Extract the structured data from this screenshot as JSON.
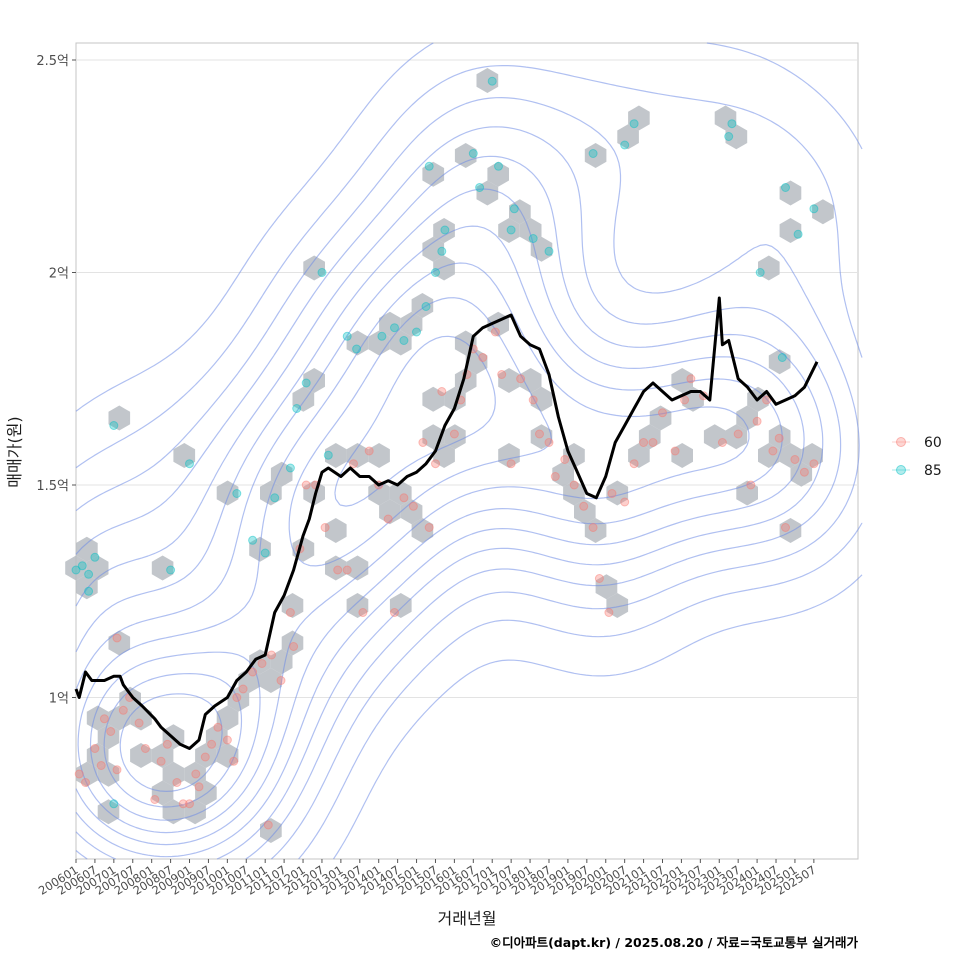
{
  "chart_data": {
    "type": "scatter",
    "xlabel": "거래년월",
    "ylabel": "매매가(원)",
    "caption": "©디아파트(dapt.kr) / 2025.08.20 / 자료=국토교통부 실거래가",
    "x_range": [
      "2006-01",
      "2026-09"
    ],
    "x_ticks": [
      "200601",
      "200607",
      "200701",
      "200707",
      "200801",
      "200807",
      "200901",
      "200907",
      "201001",
      "201007",
      "201101",
      "201107",
      "201201",
      "201207",
      "201301",
      "201307",
      "201401",
      "201407",
      "201501",
      "201507",
      "201601",
      "201607",
      "201701",
      "201707",
      "201801",
      "201807",
      "201901",
      "201907",
      "202001",
      "202007",
      "202101",
      "202107",
      "202201",
      "202207",
      "202301",
      "202307",
      "202401",
      "202407",
      "202501",
      "202507"
    ],
    "y_ticks": [
      {
        "value": 1.0,
        "label": "1억"
      },
      {
        "value": 1.5,
        "label": "1.5억"
      },
      {
        "value": 2.0,
        "label": "2억"
      },
      {
        "value": 2.5,
        "label": "2.5억"
      }
    ],
    "ylim": [
      0.62,
      2.54
    ],
    "grid": true,
    "legend_position": "right",
    "colors": {
      "60": "#f8766d",
      "85": "#00bfc4",
      "trend": "#000000",
      "density": "#6f8ce6",
      "hex": "#b7bcc2"
    },
    "series": [
      {
        "name": "60",
        "values": [
          [
            "2006-02",
            0.82
          ],
          [
            "2006-04",
            0.8
          ],
          [
            "2006-07",
            0.88
          ],
          [
            "2006-09",
            0.84
          ],
          [
            "2006-10",
            0.95
          ],
          [
            "2006-12",
            0.92
          ],
          [
            "2007-02",
            0.83
          ],
          [
            "2007-02",
            1.14
          ],
          [
            "2007-04",
            0.97
          ],
          [
            "2007-06",
            1.0
          ],
          [
            "2007-09",
            0.94
          ],
          [
            "2007-11",
            0.88
          ],
          [
            "2008-02",
            0.76
          ],
          [
            "2008-04",
            0.85
          ],
          [
            "2008-06",
            0.89
          ],
          [
            "2008-09",
            0.8
          ],
          [
            "2008-11",
            0.75
          ],
          [
            "2009-01",
            0.75
          ],
          [
            "2009-03",
            0.82
          ],
          [
            "2009-04",
            0.79
          ],
          [
            "2009-06",
            0.86
          ],
          [
            "2009-08",
            0.89
          ],
          [
            "2009-10",
            0.93
          ],
          [
            "2010-01",
            0.9
          ],
          [
            "2010-03",
            0.85
          ],
          [
            "2010-04",
            1.0
          ],
          [
            "2010-06",
            1.02
          ],
          [
            "2010-09",
            1.06
          ],
          [
            "2010-12",
            1.08
          ],
          [
            "2011-03",
            1.1
          ],
          [
            "2011-06",
            1.04
          ],
          [
            "2011-02",
            0.7
          ],
          [
            "2011-09",
            1.2
          ],
          [
            "2011-10",
            1.12
          ],
          [
            "2011-12",
            1.35
          ],
          [
            "2012-02",
            1.5
          ],
          [
            "2012-05",
            1.5
          ],
          [
            "2012-08",
            1.4
          ],
          [
            "2012-12",
            1.3
          ],
          [
            "2013-03",
            1.3
          ],
          [
            "2013-05",
            1.55
          ],
          [
            "2013-08",
            1.2
          ],
          [
            "2013-10",
            1.58
          ],
          [
            "2014-01",
            1.5
          ],
          [
            "2014-04",
            1.42
          ],
          [
            "2014-06",
            1.2
          ],
          [
            "2014-09",
            1.47
          ],
          [
            "2014-12",
            1.45
          ],
          [
            "2015-03",
            1.6
          ],
          [
            "2015-05",
            1.4
          ],
          [
            "2015-07",
            1.55
          ],
          [
            "2015-09",
            1.72
          ],
          [
            "2016-01",
            1.62
          ],
          [
            "2016-03",
            1.7
          ],
          [
            "2016-05",
            1.76
          ],
          [
            "2016-07",
            1.82
          ],
          [
            "2016-10",
            1.8
          ],
          [
            "2017-02",
            1.86
          ],
          [
            "2017-04",
            1.76
          ],
          [
            "2017-07",
            1.55
          ],
          [
            "2017-10",
            1.75
          ],
          [
            "2018-02",
            1.7
          ],
          [
            "2018-04",
            1.62
          ],
          [
            "2018-07",
            1.6
          ],
          [
            "2018-09",
            1.52
          ],
          [
            "2018-12",
            1.56
          ],
          [
            "2019-03",
            1.5
          ],
          [
            "2019-06",
            1.45
          ],
          [
            "2019-09",
            1.4
          ],
          [
            "2019-11",
            1.28
          ],
          [
            "2020-02",
            1.2
          ],
          [
            "2020-03",
            1.48
          ],
          [
            "2020-07",
            1.46
          ],
          [
            "2020-10",
            1.55
          ],
          [
            "2021-01",
            1.6
          ],
          [
            "2021-04",
            1.6
          ],
          [
            "2021-07",
            1.67
          ],
          [
            "2021-11",
            1.58
          ],
          [
            "2022-02",
            1.7
          ],
          [
            "2022-04",
            1.75
          ],
          [
            "2022-08",
            1.71
          ],
          [
            "2023-02",
            1.6
          ],
          [
            "2023-07",
            1.62
          ],
          [
            "2023-11",
            1.5
          ],
          [
            "2024-01",
            1.65
          ],
          [
            "2024-04",
            1.7
          ],
          [
            "2024-06",
            1.58
          ],
          [
            "2024-08",
            1.61
          ],
          [
            "2024-10",
            1.4
          ],
          [
            "2025-01",
            1.56
          ],
          [
            "2025-04",
            1.53
          ],
          [
            "2025-07",
            1.55
          ]
        ]
      },
      {
        "name": "85",
        "values": [
          [
            "2006-01",
            1.3
          ],
          [
            "2006-03",
            1.31
          ],
          [
            "2006-05",
            1.29
          ],
          [
            "2006-07",
            1.33
          ],
          [
            "2006-05",
            1.25
          ],
          [
            "2007-01",
            1.64
          ],
          [
            "2007-01",
            0.75
          ],
          [
            "2008-07",
            1.3
          ],
          [
            "2009-01",
            1.55
          ],
          [
            "2010-04",
            1.48
          ],
          [
            "2010-09",
            1.37
          ],
          [
            "2011-01",
            1.34
          ],
          [
            "2011-04",
            1.47
          ],
          [
            "2011-09",
            1.54
          ],
          [
            "2011-11",
            1.68
          ],
          [
            "2012-02",
            1.74
          ],
          [
            "2012-07",
            2.0
          ],
          [
            "2012-09",
            1.57
          ],
          [
            "2013-06",
            1.82
          ],
          [
            "2013-03",
            1.85
          ],
          [
            "2014-02",
            1.85
          ],
          [
            "2014-06",
            1.87
          ],
          [
            "2014-09",
            1.84
          ],
          [
            "2015-01",
            1.86
          ],
          [
            "2015-04",
            1.92
          ],
          [
            "2015-07",
            2.0
          ],
          [
            "2015-09",
            2.05
          ],
          [
            "2015-10",
            2.1
          ],
          [
            "2015-05",
            2.25
          ],
          [
            "2016-07",
            2.28
          ],
          [
            "2016-09",
            2.2
          ],
          [
            "2017-01",
            2.45
          ],
          [
            "2017-03",
            2.25
          ],
          [
            "2017-07",
            2.1
          ],
          [
            "2017-08",
            2.15
          ],
          [
            "2018-02",
            2.08
          ],
          [
            "2018-07",
            2.05
          ],
          [
            "2019-09",
            2.28
          ],
          [
            "2020-07",
            2.3
          ],
          [
            "2020-10",
            2.35
          ],
          [
            "2023-04",
            2.32
          ],
          [
            "2023-05",
            2.35
          ],
          [
            "2024-02",
            2.0
          ],
          [
            "2024-09",
            1.8
          ],
          [
            "2024-10",
            2.2
          ],
          [
            "2025-02",
            2.09
          ],
          [
            "2025-07",
            2.15
          ]
        ]
      },
      {
        "name": "trend",
        "values": [
          [
            "2006-01",
            1.02
          ],
          [
            "2006-02",
            1.0
          ],
          [
            "2006-04",
            1.06
          ],
          [
            "2006-06",
            1.04
          ],
          [
            "2006-10",
            1.04
          ],
          [
            "2007-01",
            1.05
          ],
          [
            "2007-03",
            1.05
          ],
          [
            "2007-04",
            1.03
          ],
          [
            "2007-07",
            1.0
          ],
          [
            "2007-10",
            0.98
          ],
          [
            "2008-02",
            0.95
          ],
          [
            "2008-04",
            0.93
          ],
          [
            "2008-07",
            0.91
          ],
          [
            "2008-10",
            0.89
          ],
          [
            "2009-01",
            0.88
          ],
          [
            "2009-04",
            0.9
          ],
          [
            "2009-06",
            0.96
          ],
          [
            "2009-09",
            0.98
          ],
          [
            "2010-01",
            1.0
          ],
          [
            "2010-04",
            1.04
          ],
          [
            "2010-07",
            1.06
          ],
          [
            "2010-10",
            1.09
          ],
          [
            "2011-01",
            1.1
          ],
          [
            "2011-04",
            1.2
          ],
          [
            "2011-07",
            1.24
          ],
          [
            "2011-10",
            1.3
          ],
          [
            "2012-01",
            1.38
          ],
          [
            "2012-03",
            1.42
          ],
          [
            "2012-05",
            1.48
          ],
          [
            "2012-07",
            1.53
          ],
          [
            "2012-09",
            1.54
          ],
          [
            "2013-01",
            1.52
          ],
          [
            "2013-04",
            1.54
          ],
          [
            "2013-07",
            1.52
          ],
          [
            "2013-10",
            1.52
          ],
          [
            "2014-01",
            1.5
          ],
          [
            "2014-04",
            1.51
          ],
          [
            "2014-07",
            1.5
          ],
          [
            "2014-10",
            1.52
          ],
          [
            "2015-01",
            1.53
          ],
          [
            "2015-04",
            1.55
          ],
          [
            "2015-07",
            1.58
          ],
          [
            "2015-10",
            1.64
          ],
          [
            "2016-01",
            1.68
          ],
          [
            "2016-04",
            1.75
          ],
          [
            "2016-07",
            1.85
          ],
          [
            "2016-10",
            1.87
          ],
          [
            "2017-01",
            1.88
          ],
          [
            "2017-04",
            1.89
          ],
          [
            "2017-07",
            1.9
          ],
          [
            "2017-10",
            1.85
          ],
          [
            "2018-01",
            1.83
          ],
          [
            "2018-04",
            1.82
          ],
          [
            "2018-07",
            1.76
          ],
          [
            "2018-10",
            1.66
          ],
          [
            "2019-01",
            1.58
          ],
          [
            "2019-04",
            1.53
          ],
          [
            "2019-07",
            1.48
          ],
          [
            "2019-10",
            1.47
          ],
          [
            "2020-01",
            1.52
          ],
          [
            "2020-04",
            1.6
          ],
          [
            "2020-07",
            1.64
          ],
          [
            "2020-10",
            1.68
          ],
          [
            "2021-01",
            1.72
          ],
          [
            "2021-04",
            1.74
          ],
          [
            "2021-07",
            1.72
          ],
          [
            "2021-10",
            1.7
          ],
          [
            "2022-01",
            1.71
          ],
          [
            "2022-04",
            1.72
          ],
          [
            "2022-07",
            1.72
          ],
          [
            "2022-10",
            1.7
          ],
          [
            "2023-01",
            1.94
          ],
          [
            "2023-02",
            1.83
          ],
          [
            "2023-04",
            1.84
          ],
          [
            "2023-07",
            1.75
          ],
          [
            "2023-10",
            1.73
          ],
          [
            "2024-01",
            1.7
          ],
          [
            "2024-04",
            1.72
          ],
          [
            "2024-07",
            1.69
          ],
          [
            "2024-10",
            1.7
          ],
          [
            "2025-01",
            1.71
          ],
          [
            "2025-04",
            1.73
          ],
          [
            "2025-08",
            1.79
          ]
        ]
      }
    ]
  }
}
